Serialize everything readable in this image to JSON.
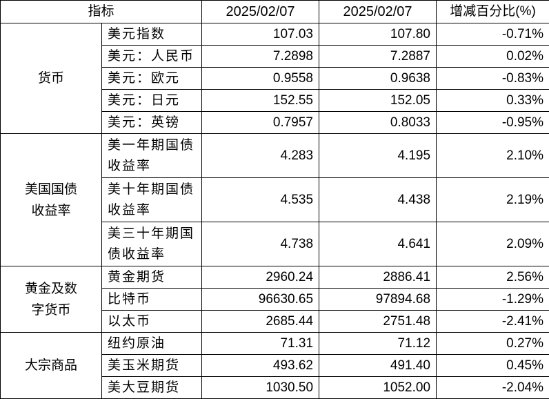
{
  "header": {
    "indicator": "指标",
    "date1": "2025/02/07",
    "date2": "2025/02/07",
    "change": "增减百分比(%)"
  },
  "groups": [
    {
      "name": "货币",
      "rows": [
        {
          "name": "美元指数",
          "v1": "107.03",
          "v2": "107.80",
          "chg": "-0.71%"
        },
        {
          "name": "美元：人民币",
          "v1": "7.2898",
          "v2": "7.2887",
          "chg": "0.02%"
        },
        {
          "name": "美元：欧元",
          "v1": "0.9558",
          "v2": "0.9638",
          "chg": "-0.83%"
        },
        {
          "name": "美元：日元",
          "v1": "152.55",
          "v2": "152.05",
          "chg": "0.33%"
        },
        {
          "name": "美元：英镑",
          "v1": "0.7957",
          "v2": "0.8033",
          "chg": "-0.95%"
        }
      ]
    },
    {
      "name": "美国国债收益率",
      "tall": true,
      "rows": [
        {
          "name": "美一年期国债收益率",
          "v1": "4.283",
          "v2": "4.195",
          "chg": "2.10%"
        },
        {
          "name": "美十年期国债收益率",
          "v1": "4.535",
          "v2": "4.438",
          "chg": "2.19%"
        },
        {
          "name": "美三十年期国债收益率",
          "v1": "4.738",
          "v2": "4.641",
          "chg": "2.09%"
        }
      ]
    },
    {
      "name": "黄金及数字货币",
      "rows": [
        {
          "name": "黄金期货",
          "v1": "2960.24",
          "v2": "2886.41",
          "chg": "2.56%"
        },
        {
          "name": "比特币",
          "v1": "96630.65",
          "v2": "97894.68",
          "chg": "-1.29%"
        },
        {
          "name": "以太币",
          "v1": "2685.44",
          "v2": "2751.48",
          "chg": "-2.41%"
        }
      ]
    },
    {
      "name": "大宗商品",
      "rows": [
        {
          "name": "纽约原油",
          "v1": "71.31",
          "v2": "71.12",
          "chg": "0.27%"
        },
        {
          "name": "美玉米期货",
          "v1": "493.62",
          "v2": "491.40",
          "chg": "0.45%"
        },
        {
          "name": "美大豆期货",
          "v1": "1030.50",
          "v2": "1052.00",
          "chg": "-2.04%"
        }
      ]
    }
  ]
}
